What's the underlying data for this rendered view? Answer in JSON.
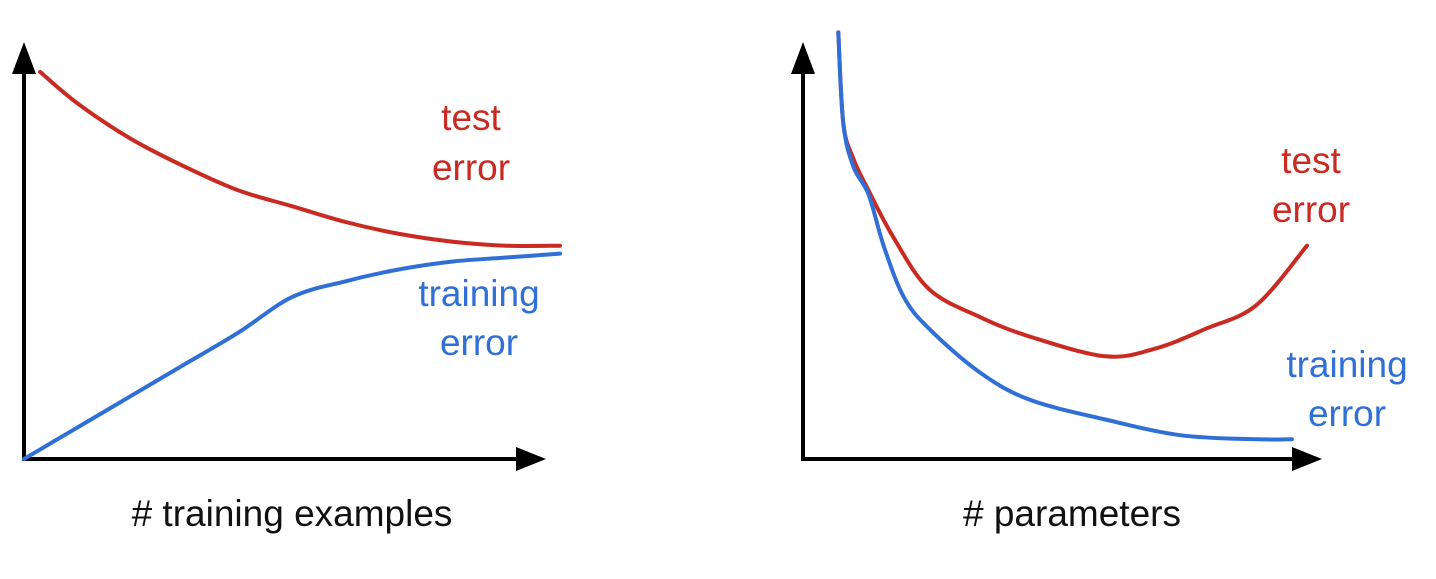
{
  "colors": {
    "test": "#c92a22",
    "training": "#2f6fd6",
    "axis": "#000000"
  },
  "chart_data": [
    {
      "type": "line",
      "xlabel": "# training examples",
      "ylabel": "",
      "xlim": [
        0,
        1
      ],
      "ylim": [
        0,
        1
      ],
      "series": [
        {
          "name": "test error",
          "label_lines": [
            "test",
            "error"
          ],
          "x": [
            0.03,
            0.1,
            0.2,
            0.3,
            0.4,
            0.5,
            0.6,
            0.7,
            0.8,
            0.9,
            1.0
          ],
          "y": [
            0.98,
            0.9,
            0.81,
            0.74,
            0.68,
            0.64,
            0.6,
            0.57,
            0.55,
            0.54,
            0.54
          ]
        },
        {
          "name": "training error",
          "label_lines": [
            "training",
            "error"
          ],
          "x": [
            0.0,
            0.1,
            0.2,
            0.3,
            0.4,
            0.5,
            0.6,
            0.7,
            0.8,
            0.9,
            1.0
          ],
          "y": [
            0.0,
            0.08,
            0.16,
            0.24,
            0.32,
            0.41,
            0.45,
            0.48,
            0.5,
            0.51,
            0.52
          ]
        }
      ]
    },
    {
      "type": "line",
      "xlabel": "# parameters",
      "ylabel": "",
      "xlim": [
        0,
        1
      ],
      "ylim": [
        0,
        1
      ],
      "series": [
        {
          "name": "test error",
          "label_lines": [
            "test",
            "error"
          ],
          "x": [
            0.07,
            0.08,
            0.1,
            0.13,
            0.18,
            0.25,
            0.35,
            0.45,
            0.6,
            0.7,
            0.8,
            0.9,
            1.0
          ],
          "y": [
            1.08,
            0.85,
            0.76,
            0.68,
            0.56,
            0.43,
            0.36,
            0.31,
            0.26,
            0.28,
            0.33,
            0.39,
            0.54
          ]
        },
        {
          "name": "training error",
          "label_lines": [
            "training",
            "error"
          ],
          "x": [
            0.07,
            0.08,
            0.1,
            0.13,
            0.16,
            0.2,
            0.25,
            0.35,
            0.45,
            0.6,
            0.75,
            0.9,
            0.97
          ],
          "y": [
            1.08,
            0.85,
            0.74,
            0.67,
            0.54,
            0.41,
            0.33,
            0.22,
            0.15,
            0.1,
            0.06,
            0.05,
            0.05
          ]
        }
      ]
    }
  ]
}
